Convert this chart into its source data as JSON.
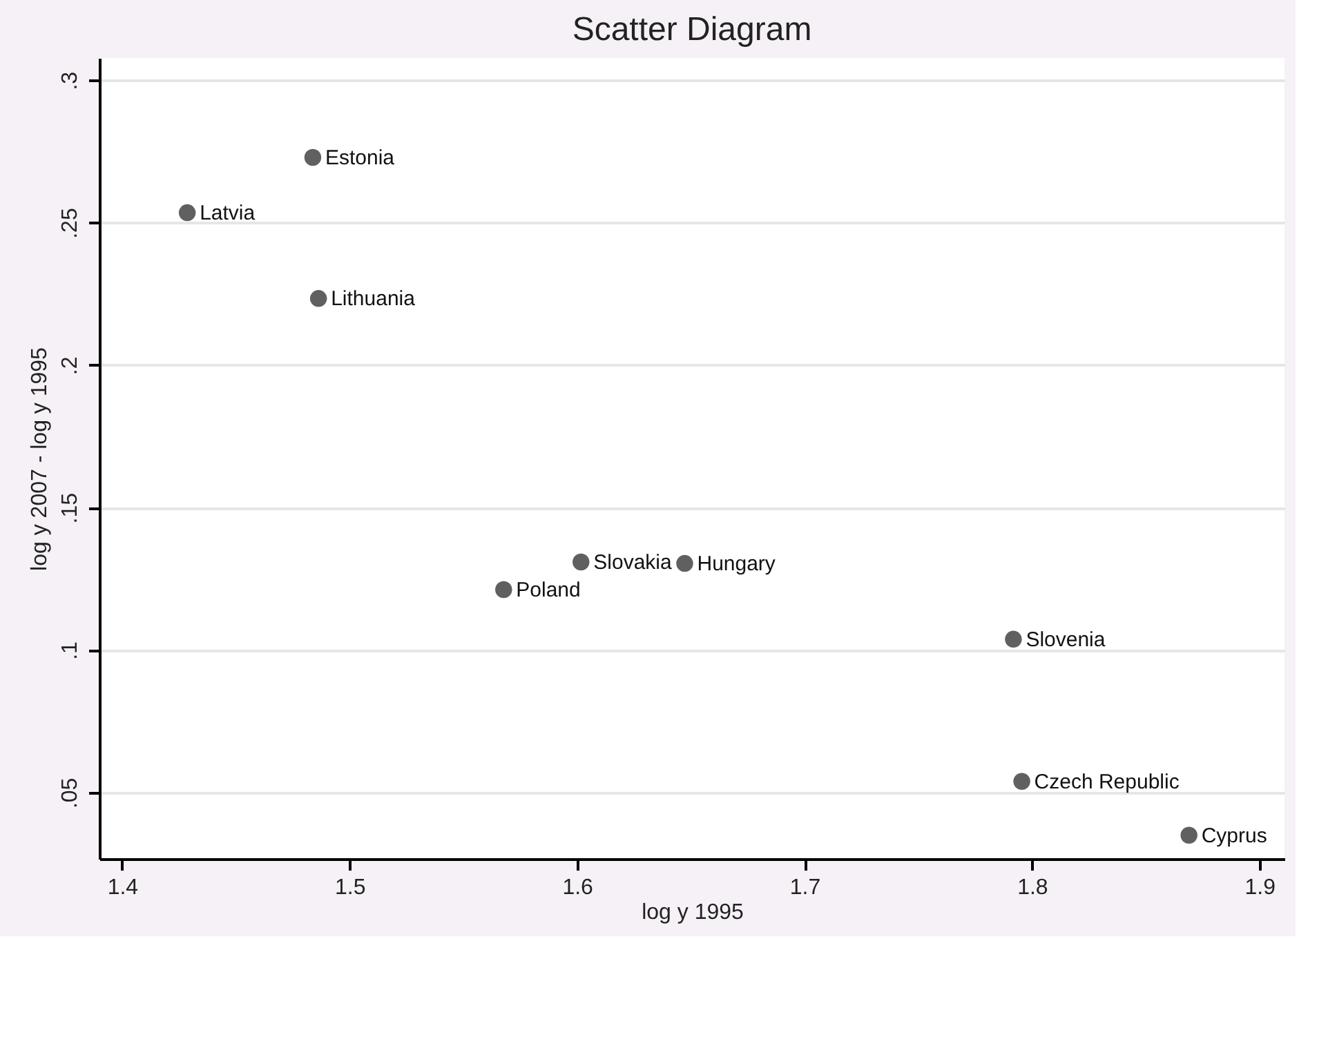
{
  "chart_data": {
    "type": "scatter",
    "title": "Scatter Diagram",
    "xlabel": "log y 1995",
    "ylabel": "log y 2007 - log y 1995",
    "x": [
      1.4286,
      1.4838,
      1.4863,
      1.5677,
      1.6017,
      1.6473,
      1.7918,
      1.7955,
      1.869
    ],
    "series": [
      {
        "color": "#606060",
        "values": [
          0.2535,
          0.2729,
          0.2234,
          0.1212,
          0.1309,
          0.1304,
          0.1038,
          0.0539,
          0.035
        ]
      }
    ],
    "annotations": [
      {
        "text": "Latvia",
        "x": 1.4286,
        "y": 0.2535
      },
      {
        "text": "Estonia",
        "x": 1.4838,
        "y": 0.2729
      },
      {
        "text": "Lithuania",
        "x": 1.4863,
        "y": 0.2234
      },
      {
        "text": "Poland",
        "x": 1.5677,
        "y": 0.1212
      },
      {
        "text": "Slovakia",
        "x": 1.6017,
        "y": 0.1309
      },
      {
        "text": "Hungary",
        "x": 1.6473,
        "y": 0.1304
      },
      {
        "text": "Slovenia",
        "x": 1.7918,
        "y": 0.1038
      },
      {
        "text": "Czech Republic",
        "x": 1.7955,
        "y": 0.0539
      },
      {
        "text": "Cyprus",
        "x": 1.869,
        "y": 0.035
      }
    ],
    "xlim": [
      1.39,
      1.911
    ],
    "ylim": [
      0.0267,
      0.3078
    ],
    "xticks": [
      {
        "value": 1.4,
        "label": "1.4"
      },
      {
        "value": 1.5,
        "label": "1.5"
      },
      {
        "value": 1.6,
        "label": "1.6"
      },
      {
        "value": 1.7,
        "label": "1.7"
      },
      {
        "value": 1.8,
        "label": "1.8"
      },
      {
        "value": 1.9,
        "label": "1.9"
      }
    ],
    "yticks": [
      {
        "value": 0.05,
        "label": ".05"
      },
      {
        "value": 0.1,
        "label": ".1"
      },
      {
        "value": 0.15,
        "label": ".15"
      },
      {
        "value": 0.2,
        "label": ".2"
      },
      {
        "value": 0.25,
        "label": ".25"
      },
      {
        "value": 0.3,
        "label": ".3"
      }
    ],
    "grid": "y",
    "marker": "circle"
  }
}
